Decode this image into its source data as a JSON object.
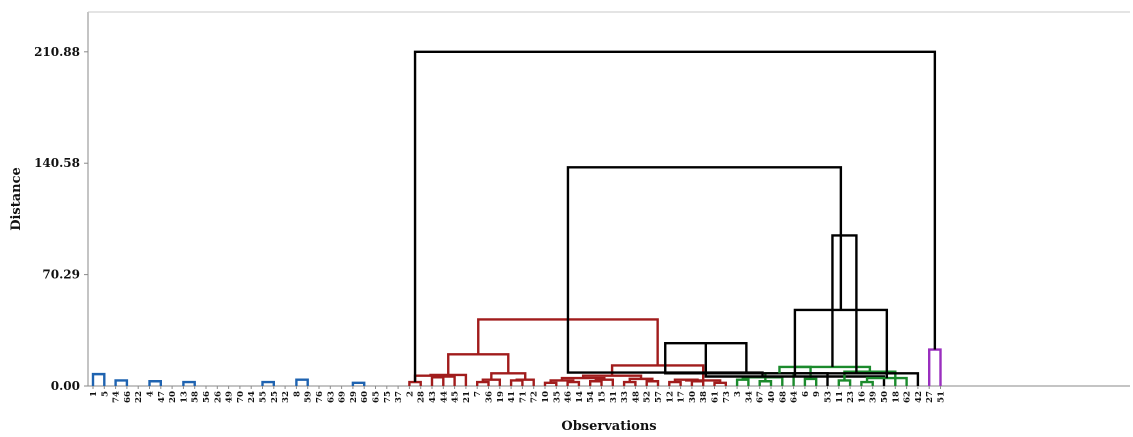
{
  "chart_data": {
    "type": "dendrogram",
    "xlabel": "Observations",
    "ylabel": "Distance",
    "yticks": [
      "0.00",
      "70.29",
      "140.58",
      "210.88"
    ],
    "ytick_values": [
      0,
      70.29,
      140.58,
      210.88
    ],
    "ylim": [
      0,
      236
    ],
    "grid": false,
    "observations": [
      "1",
      "5",
      "74",
      "66",
      "22",
      "4",
      "47",
      "20",
      "13",
      "58",
      "56",
      "26",
      "49",
      "70",
      "24",
      "55",
      "25",
      "32",
      "8",
      "59",
      "76",
      "63",
      "69",
      "29",
      "60",
      "65",
      "75",
      "37",
      "2",
      "28",
      "43",
      "44",
      "45",
      "21",
      "7",
      "36",
      "19",
      "41",
      "71",
      "72",
      "10",
      "35",
      "46",
      "14",
      "54",
      "15",
      "31",
      "33",
      "48",
      "52",
      "57",
      "12",
      "17",
      "30",
      "38",
      "61",
      "73",
      "3",
      "34",
      "67",
      "40",
      "68",
      "64",
      "6",
      "9",
      "53",
      "11",
      "23",
      "16",
      "39",
      "50",
      "18",
      "62",
      "42",
      "27",
      "51"
    ],
    "clusters": [
      {
        "color": "#1f63b0",
        "first": 0,
        "last": 27
      },
      {
        "color": "#a11c1c",
        "first": 28,
        "last": 56
      },
      {
        "color": "#1b8a2c",
        "first": 57,
        "last": 73
      },
      {
        "color": "#9a2fbf",
        "first": 74,
        "last": 75
      }
    ],
    "link_color": "#000000",
    "merges": [
      [
        "1",
        "5",
        7.5
      ],
      [
        "74",
        "66",
        3.5
      ],
      [
        "L3",
        "22",
        4.0
      ],
      [
        "L2",
        "L4",
        4.5
      ],
      [
        "L1",
        "L5",
        8.0
      ],
      [
        "4",
        "47",
        3.0
      ],
      [
        "L7",
        "20",
        4.5
      ],
      [
        "13",
        "58",
        2.5
      ],
      [
        "L9",
        "56",
        3.0
      ],
      [
        "L10",
        "26",
        4.0
      ],
      [
        "L11",
        "49",
        3.5
      ],
      [
        "L12",
        "70",
        5.5
      ],
      [
        "L13",
        "24",
        5.0
      ],
      [
        "55",
        "25",
        2.5
      ],
      [
        "L15",
        "32",
        3.0
      ],
      [
        "L14",
        "L16",
        4.5
      ],
      [
        "L8",
        "L17",
        13.0
      ],
      [
        "8",
        "59",
        4.0
      ],
      [
        "L19",
        "76",
        2.5
      ],
      [
        "L20",
        "63",
        3.5
      ],
      [
        "L21",
        "69",
        3.0
      ],
      [
        "L22",
        "L19",
        7.5
      ],
      [
        "29",
        "60",
        2.0
      ],
      [
        "L24",
        "65",
        2.5
      ],
      [
        "L25",
        "75",
        3.0
      ],
      [
        "L26",
        "37",
        3.5
      ],
      [
        "L23",
        "L27",
        9.0
      ],
      [
        "L18",
        "L28",
        35.0
      ],
      [
        "L6",
        "L29",
        36.0
      ],
      [
        "L30",
        "L6",
        38.0
      ],
      [
        "2",
        "28",
        2.5
      ],
      [
        "43",
        "44",
        5.5
      ],
      [
        "L32",
        "45",
        6.0
      ],
      [
        "L31",
        "L33",
        6.5
      ],
      [
        "L34",
        "21",
        7.0
      ],
      [
        "7",
        "36",
        2.5
      ],
      [
        "L36",
        "19",
        4.0
      ],
      [
        "41",
        "71",
        3.5
      ],
      [
        "L38",
        "72",
        4.0
      ],
      [
        "L37",
        "L39",
        8.0
      ],
      [
        "L35",
        "L40",
        20.0
      ],
      [
        "10",
        "35",
        2.0
      ],
      [
        "46",
        "14",
        2.5
      ],
      [
        "L42",
        "L43",
        3.5
      ],
      [
        "54",
        "15",
        3.0
      ],
      [
        "L45",
        "31",
        4.0
      ],
      [
        "L44",
        "L46",
        5.0
      ],
      [
        "33",
        "48",
        2.5
      ],
      [
        "52",
        "57",
        3.0
      ],
      [
        "L48",
        "L49",
        4.5
      ],
      [
        "L47",
        "L50",
        6.5
      ],
      [
        "12",
        "17",
        2.5
      ],
      [
        "30",
        "38",
        3.0
      ],
      [
        "L52",
        "L53",
        4.0
      ],
      [
        "61",
        "73",
        2.0
      ],
      [
        "L54",
        "L55",
        3.5
      ],
      [
        "L51",
        "L56",
        13.0
      ],
      [
        "L41",
        "L57",
        42.0
      ],
      [
        "3",
        "34",
        4.0
      ],
      [
        "67",
        "40",
        3.0
      ],
      [
        "L59",
        "68",
        5.5
      ],
      [
        "L60",
        "64",
        8.0
      ],
      [
        "L58",
        "L61",
        8.5
      ],
      [
        "6",
        "9",
        4.5
      ],
      [
        "L63",
        "53",
        8.0
      ],
      [
        "L62",
        "L64",
        12.0
      ],
      [
        "L65",
        "L63",
        27.0
      ],
      [
        "11",
        "23",
        3.5
      ],
      [
        "16",
        "39",
        2.5
      ],
      [
        "L67",
        "50",
        6.0
      ],
      [
        "L68",
        "18",
        9.0
      ],
      [
        "L69",
        "62",
        5.0
      ],
      [
        "L70",
        "42",
        8.0
      ],
      [
        "L66",
        "L71",
        12.0
      ],
      [
        "L70",
        "L72",
        48.0
      ],
      [
        "27",
        "51",
        23.0
      ],
      [
        "L74",
        "L73",
        95.0
      ],
      [
        "L58",
        "L75",
        138.0
      ],
      [
        "L31",
        "L76",
        210.88
      ]
    ]
  }
}
